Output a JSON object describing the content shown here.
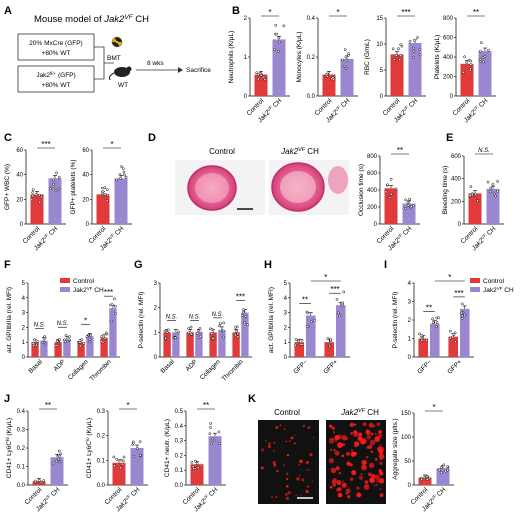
{
  "colors": {
    "control": "#e03a3a",
    "jak2": "#9b87d0",
    "axis": "#000",
    "scheme_box": "#333",
    "micro_bg": "#111",
    "micro_dot": "#ff1a1a"
  },
  "common": {
    "control": "Control",
    "jak2_prefix": "Jak2",
    "jak2_sup": "VF",
    "jak2_suffix": " CH",
    "jak2_label": "Jak2VF CH"
  },
  "panelA": {
    "letter": "A",
    "title_prefix": "Mouse model of ",
    "title_gene": "Jak2",
    "title_sup": "VF",
    "title_suffix": " CH",
    "box1": [
      "20% MxCre (GFP)",
      "+80% WT"
    ],
    "box2": [
      "20% Jak2fl/+ (GFP)",
      "+80% WT"
    ],
    "box2_gene": "Jak2",
    "box2_sup": "fl/+",
    "box2_rest": " (GFP)",
    "bmt": "BMT",
    "wt": "WT",
    "wks": "8 wks",
    "sacrifice": "Sacrifice"
  },
  "panelB": {
    "letter": "B",
    "charts": [
      {
        "ylabel": "Neutrophils (K/μL)",
        "sig": "*",
        "ylim": [
          0,
          2
        ],
        "ticks": [
          "0",
          "1",
          "2"
        ],
        "values": [
          0.55,
          1.45
        ]
      },
      {
        "ylabel": "Monocytes (K/μL)",
        "sig": "*",
        "ylim": [
          0,
          0.4
        ],
        "ticks": [
          "0.0",
          "0.2",
          "0.4"
        ],
        "values": [
          0.11,
          0.19
        ]
      },
      {
        "ylabel": "RBC (G/mL)",
        "sig": "***",
        "ylim": [
          0,
          15
        ],
        "ticks": [
          "0",
          "5",
          "10",
          "15"
        ],
        "values": [
          8.0,
          10.2
        ]
      },
      {
        "ylabel": "Platelets (K/μL)",
        "sig": "**",
        "ylim": [
          0,
          800
        ],
        "ticks": [
          "0",
          "200",
          "400",
          "600",
          "800"
        ],
        "values": [
          330,
          460
        ]
      }
    ]
  },
  "panelC": {
    "letter": "C",
    "charts": [
      {
        "ylabel": "GFP+ WBC (%)",
        "sig": "***",
        "ylim": [
          0,
          60
        ],
        "ticks": [
          "0",
          "20",
          "40",
          "60"
        ],
        "values": [
          24,
          37
        ]
      },
      {
        "ylabel": "GFP+ platelets (%)",
        "sig": "*",
        "ylim": [
          0,
          60
        ],
        "ticks": [
          "0",
          "20",
          "40",
          "60"
        ],
        "values": [
          24,
          37
        ]
      }
    ]
  },
  "panelD": {
    "letter": "D",
    "img_control": "Control",
    "img_jak2": "Jak2VF CH",
    "chart": {
      "ylabel": "Occlusion time (s)",
      "sig": "**",
      "ylim": [
        0,
        800
      ],
      "ticks": [
        "0",
        "200",
        "400",
        "600",
        "800"
      ],
      "values": [
        420,
        240
      ]
    }
  },
  "panelE": {
    "letter": "E",
    "chart": {
      "ylabel": "Bleeding time (s)",
      "sig": "N.S.",
      "ylim": [
        0,
        600
      ],
      "ticks": [
        "0",
        "200",
        "400",
        "600"
      ],
      "values": [
        270,
        310
      ]
    }
  },
  "panelF": {
    "letter": "F",
    "ylabel": "act. GPIIbIIIa (rel. MFI)",
    "ylim": [
      0,
      5
    ],
    "ticks": [
      "0",
      "1",
      "2",
      "3",
      "4",
      "5"
    ],
    "categories": [
      "Basal",
      "ADP",
      "Collagen",
      "Thrombin"
    ],
    "sigs": [
      "N.S.",
      "N.S.",
      "*",
      "***"
    ],
    "series": [
      {
        "name": "Control",
        "values": [
          1.0,
          1.0,
          1.0,
          1.3
        ]
      },
      {
        "name": "Jak2VF CH",
        "values": [
          1.1,
          1.2,
          1.4,
          3.3
        ]
      }
    ]
  },
  "panelG": {
    "letter": "G",
    "ylabel": "P-selectin (rel. MFI)",
    "ylim": [
      0,
      3
    ],
    "ticks": [
      "0",
      "1",
      "2",
      "3"
    ],
    "categories": [
      "Basal",
      "ADP",
      "Collagen",
      "Thrombin"
    ],
    "sigs": [
      "N.S.",
      "N.S.",
      "N.S.",
      "***"
    ],
    "series": [
      {
        "name": "Control",
        "values": [
          1.0,
          1.0,
          1.0,
          1.0
        ]
      },
      {
        "name": "Jak2VF CH",
        "values": [
          1.0,
          1.0,
          1.1,
          1.8
        ]
      }
    ]
  },
  "panelH": {
    "letter": "H",
    "ylabel": "act. GPIIbIIIa (rel. MFI)",
    "ylim": [
      0,
      5
    ],
    "ticks": [
      "0",
      "1",
      "2",
      "3",
      "4",
      "5"
    ],
    "categories": [
      "GFP−",
      "GFP+"
    ],
    "sigs": [
      "**",
      "***"
    ],
    "sig_between": "*",
    "series": [
      {
        "name": "Control",
        "values": [
          1.0,
          1.0
        ]
      },
      {
        "name": "Jak2VF CH",
        "values": [
          2.8,
          3.5
        ]
      }
    ]
  },
  "panelI": {
    "letter": "I",
    "ylabel": "P-selectin (rel. MFI)",
    "ylim": [
      0,
      4
    ],
    "ticks": [
      "0",
      "1",
      "2",
      "3",
      "4"
    ],
    "categories": [
      "GFP−",
      "GFP+"
    ],
    "sigs": [
      "**",
      "***"
    ],
    "sig_between": "*",
    "series": [
      {
        "name": "Control",
        "values": [
          1.0,
          1.1
        ]
      },
      {
        "name": "Jak2VF CH",
        "values": [
          1.8,
          2.6
        ]
      }
    ],
    "legend": [
      "Control",
      "Jak2VF CH"
    ]
  },
  "panelJ": {
    "letter": "J",
    "charts": [
      {
        "ylabel": "CD41+ Ly6C^hi (K/μL)",
        "ylabel_main": "CD41+ Ly6C",
        "ylabel_sup": "hi",
        "ylabel_unit": " (K/μL)",
        "sig": "**",
        "ylim": [
          0,
          0.4
        ],
        "ticks": [
          "0.0",
          "0.1",
          "0.2",
          "0.3",
          "0.4"
        ],
        "values": [
          0.02,
          0.15
        ]
      },
      {
        "ylabel": "CD41+ Ly6C^lo (K/μL)",
        "ylabel_main": "CD41+ Ly6C",
        "ylabel_sup": "lo",
        "ylabel_unit": " (K/μL)",
        "sig": "*",
        "ylim": [
          0,
          0.3
        ],
        "ticks": [
          "0.0",
          "0.1",
          "0.2",
          "0.3"
        ],
        "values": [
          0.09,
          0.15
        ]
      },
      {
        "ylabel": "CD41+ neutr. (K/μL)",
        "ylabel_main": "CD41+ neutr.",
        "ylabel_sup": "",
        "ylabel_unit": " (K/μL)",
        "sig": "**",
        "ylim": [
          0,
          0.5
        ],
        "ticks": [
          "0.0",
          "0.1",
          "0.2",
          "0.3",
          "0.4",
          "0.5"
        ],
        "values": [
          0.14,
          0.33
        ]
      }
    ]
  },
  "panelK": {
    "letter": "K",
    "img_control": "Control",
    "img_jak2": "Jak2VF CH",
    "chart": {
      "ylabel": "Aggregate size (plts.)",
      "sig": "*",
      "ylim": [
        0,
        150
      ],
      "ticks": [
        "0",
        "50",
        "100",
        "150"
      ],
      "values": [
        15,
        35
      ]
    }
  },
  "chart_data": [
    {
      "type": "bar",
      "panel": "B1",
      "ylabel": "Neutrophils (K/μL)",
      "categories": [
        "Control",
        "Jak2VF CH"
      ],
      "values": [
        0.55,
        1.45
      ],
      "ylim": [
        0,
        2
      ]
    },
    {
      "type": "bar",
      "panel": "B2",
      "ylabel": "Monocytes (K/μL)",
      "categories": [
        "Control",
        "Jak2VF CH"
      ],
      "values": [
        0.11,
        0.19
      ],
      "ylim": [
        0,
        0.4
      ]
    },
    {
      "type": "bar",
      "panel": "B3",
      "ylabel": "RBC (G/mL)",
      "categories": [
        "Control",
        "Jak2VF CH"
      ],
      "values": [
        8.0,
        10.2
      ],
      "ylim": [
        0,
        15
      ]
    },
    {
      "type": "bar",
      "panel": "B4",
      "ylabel": "Platelets (K/μL)",
      "categories": [
        "Control",
        "Jak2VF CH"
      ],
      "values": [
        330,
        460
      ],
      "ylim": [
        0,
        800
      ]
    },
    {
      "type": "bar",
      "panel": "C1",
      "ylabel": "GFP+ WBC (%)",
      "categories": [
        "Control",
        "Jak2VF CH"
      ],
      "values": [
        24,
        37
      ],
      "ylim": [
        0,
        60
      ]
    },
    {
      "type": "bar",
      "panel": "C2",
      "ylabel": "GFP+ platelets (%)",
      "categories": [
        "Control",
        "Jak2VF CH"
      ],
      "values": [
        24,
        37
      ],
      "ylim": [
        0,
        60
      ]
    },
    {
      "type": "bar",
      "panel": "D",
      "ylabel": "Occlusion time (s)",
      "categories": [
        "Control",
        "Jak2VF CH"
      ],
      "values": [
        420,
        240
      ],
      "ylim": [
        0,
        800
      ]
    },
    {
      "type": "bar",
      "panel": "E",
      "ylabel": "Bleeding time (s)",
      "categories": [
        "Control",
        "Jak2VF CH"
      ],
      "values": [
        270,
        310
      ],
      "ylim": [
        0,
        600
      ]
    },
    {
      "type": "bar",
      "panel": "F",
      "ylabel": "act. GPIIbIIIa (rel. MFI)",
      "categories": [
        "Basal",
        "ADP",
        "Collagen",
        "Thrombin"
      ],
      "series": [
        {
          "name": "Control",
          "values": [
            1.0,
            1.0,
            1.0,
            1.3
          ]
        },
        {
          "name": "Jak2VF CH",
          "values": [
            1.1,
            1.2,
            1.4,
            3.3
          ]
        }
      ],
      "ylim": [
        0,
        5
      ]
    },
    {
      "type": "bar",
      "panel": "G",
      "ylabel": "P-selectin (rel. MFI)",
      "categories": [
        "Basal",
        "ADP",
        "Collagen",
        "Thrombin"
      ],
      "series": [
        {
          "name": "Control",
          "values": [
            1.0,
            1.0,
            1.0,
            1.0
          ]
        },
        {
          "name": "Jak2VF CH",
          "values": [
            1.0,
            1.0,
            1.1,
            1.8
          ]
        }
      ],
      "ylim": [
        0,
        3
      ]
    },
    {
      "type": "bar",
      "panel": "H",
      "ylabel": "act. GPIIbIIIa (rel. MFI)",
      "categories": [
        "GFP−",
        "GFP+"
      ],
      "series": [
        {
          "name": "Control",
          "values": [
            1.0,
            1.0
          ]
        },
        {
          "name": "Jak2VF CH",
          "values": [
            2.8,
            3.5
          ]
        }
      ],
      "ylim": [
        0,
        5
      ]
    },
    {
      "type": "bar",
      "panel": "I",
      "ylabel": "P-selectin (rel. MFI)",
      "categories": [
        "GFP−",
        "GFP+"
      ],
      "series": [
        {
          "name": "Control",
          "values": [
            1.0,
            1.1
          ]
        },
        {
          "name": "Jak2VF CH",
          "values": [
            1.8,
            2.6
          ]
        }
      ],
      "ylim": [
        0,
        4
      ]
    },
    {
      "type": "bar",
      "panel": "J1",
      "ylabel": "CD41+ Ly6C^hi (K/μL)",
      "categories": [
        "Control",
        "Jak2VF CH"
      ],
      "values": [
        0.02,
        0.15
      ],
      "ylim": [
        0,
        0.4
      ]
    },
    {
      "type": "bar",
      "panel": "J2",
      "ylabel": "CD41+ Ly6C^lo (K/μL)",
      "categories": [
        "Control",
        "Jak2VF CH"
      ],
      "values": [
        0.09,
        0.15
      ],
      "ylim": [
        0,
        0.3
      ]
    },
    {
      "type": "bar",
      "panel": "J3",
      "ylabel": "CD41+ neutr. (K/μL)",
      "categories": [
        "Control",
        "Jak2VF CH"
      ],
      "values": [
        0.14,
        0.33
      ],
      "ylim": [
        0,
        0.5
      ]
    },
    {
      "type": "bar",
      "panel": "K",
      "ylabel": "Aggregate size (plts.)",
      "categories": [
        "Control",
        "Jak2VF CH"
      ],
      "values": [
        15,
        35
      ],
      "ylim": [
        0,
        150
      ]
    }
  ]
}
